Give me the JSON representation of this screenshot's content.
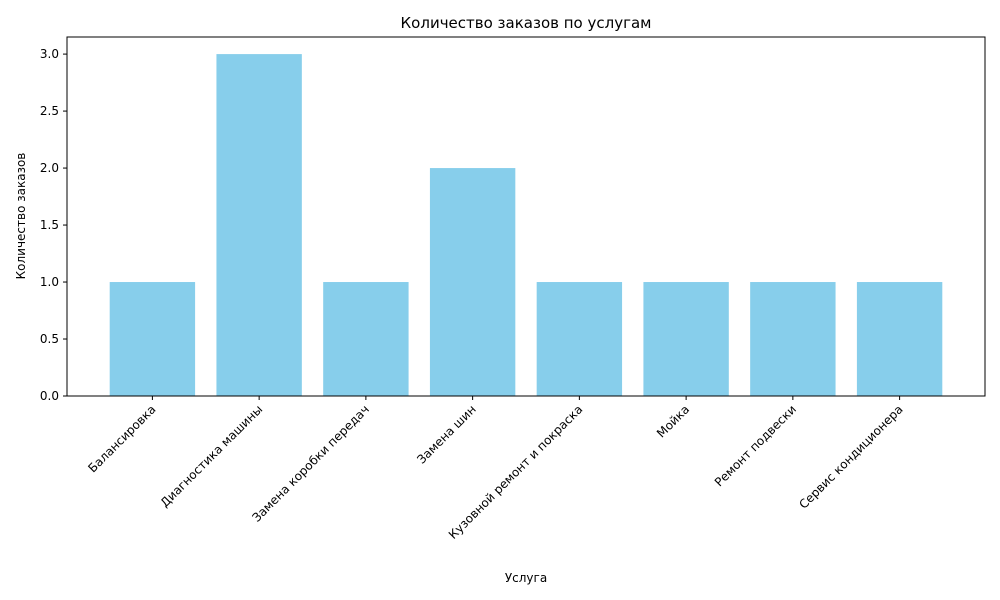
{
  "colors": {
    "bar": "#87CEEB",
    "axis": "#000000",
    "background": "#ffffff"
  },
  "chart_data": {
    "type": "bar",
    "title": "Количество заказов по услугам",
    "xlabel": "Услуга",
    "ylabel": "Количество заказов",
    "categories": [
      "Балансировка",
      "Диагностика машины",
      "Замена коробки передач",
      "Замена шин",
      "Кузовной ремонт и покраска",
      "Мойка",
      "Ремонт подвески",
      "Сервис кондиционера"
    ],
    "values": [
      1,
      3,
      1,
      2,
      1,
      1,
      1,
      1
    ],
    "ylim": [
      0,
      3.15
    ],
    "yticks": [
      0.0,
      0.5,
      1.0,
      1.5,
      2.0,
      2.5,
      3.0
    ],
    "ytick_labels": [
      "0.0",
      "0.5",
      "1.0",
      "1.5",
      "2.0",
      "2.5",
      "3.0"
    ],
    "grid": false,
    "legend": "none"
  }
}
